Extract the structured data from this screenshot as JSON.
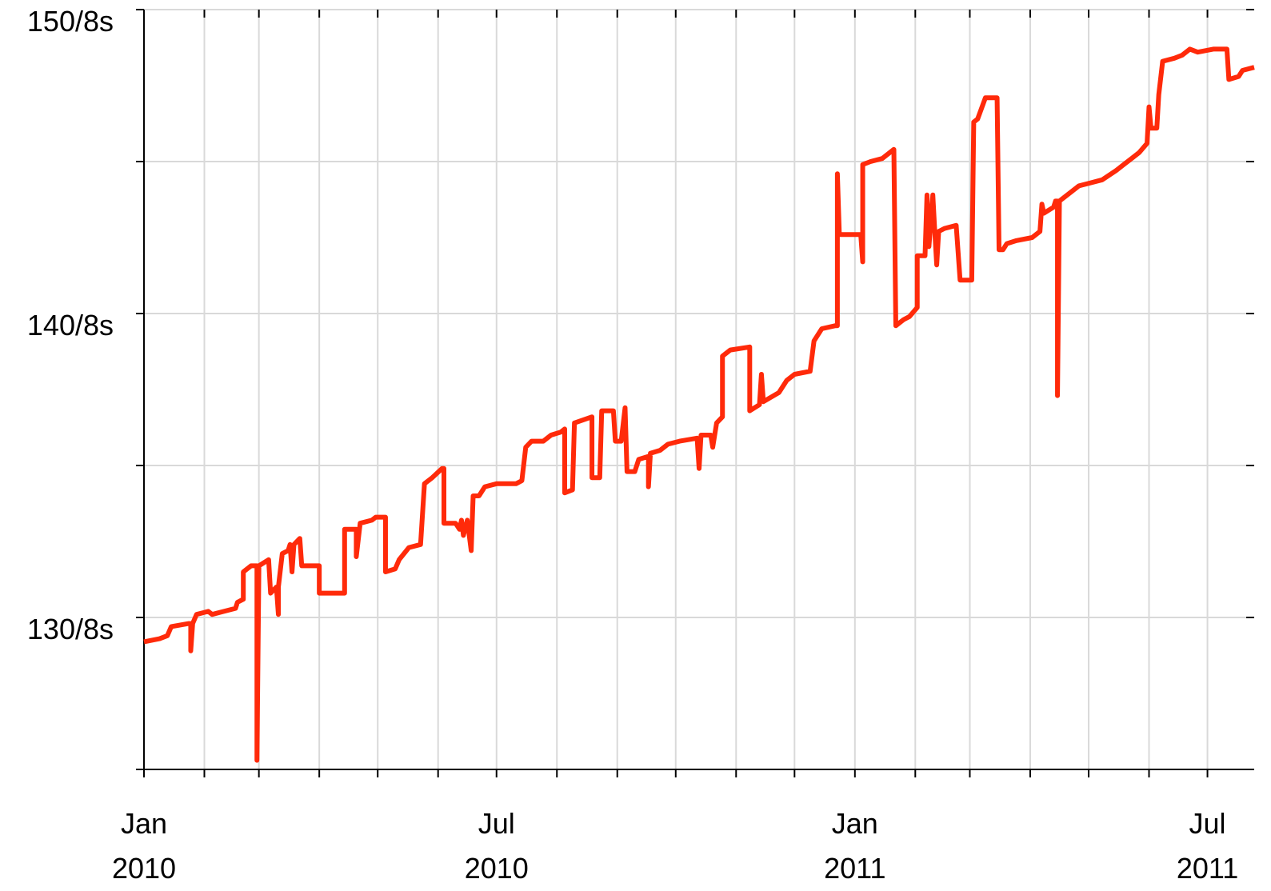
{
  "chart_data": {
    "type": "line",
    "xlim": [
      "2010-01-01",
      "2011-07-25"
    ],
    "xticks": [
      {
        "value": "2010-01",
        "label": "Jan\n2010"
      },
      {
        "value": "2010-02",
        "label": null
      },
      {
        "value": "2010-03",
        "label": null
      },
      {
        "value": "2010-04",
        "label": null
      },
      {
        "value": "2010-05",
        "label": null
      },
      {
        "value": "2010-06",
        "label": null
      },
      {
        "value": "2010-07",
        "label": "Jul\n2010"
      },
      {
        "value": "2010-08",
        "label": null
      },
      {
        "value": "2010-09",
        "label": null
      },
      {
        "value": "2010-10",
        "label": null
      },
      {
        "value": "2010-11",
        "label": null
      },
      {
        "value": "2010-12",
        "label": null
      },
      {
        "value": "2011-01",
        "label": "Jan\n2011"
      },
      {
        "value": "2011-02",
        "label": null
      },
      {
        "value": "2011-03",
        "label": null
      },
      {
        "value": "2011-04",
        "label": null
      },
      {
        "value": "2011-05",
        "label": null
      },
      {
        "value": "2011-06",
        "label": null
      },
      {
        "value": "2011-07",
        "label": "Jul\n2011"
      }
    ],
    "ylim": [
      125,
      150
    ],
    "yticks": [
      {
        "value": 125,
        "label": null
      },
      {
        "value": 130,
        "label": "130/8s"
      },
      {
        "value": 135,
        "label": null
      },
      {
        "value": 140,
        "label": "140/8s"
      },
      {
        "value": 145,
        "label": null
      },
      {
        "value": 150,
        "label": "150/8s"
      }
    ],
    "grid": true,
    "x": [
      "2010-01-01",
      "2010-01-09",
      "2010-01-13",
      "2010-01-15",
      "2010-01-24",
      "2010-01-25",
      "2010-01-25",
      "2010-01-26",
      "2010-01-28",
      "2010-02-03",
      "2010-02-05",
      "2010-02-11",
      "2010-02-17",
      "2010-02-18",
      "2010-02-21",
      "2010-02-21",
      "2010-02-25",
      "2010-02-28",
      "2010-02-28",
      "2010-03-01",
      "2010-03-06",
      "2010-03-07",
      "2010-03-10",
      "2010-03-11",
      "2010-03-11",
      "2010-03-13",
      "2010-03-16",
      "2010-03-17",
      "2010-03-18",
      "2010-03-19",
      "2010-03-22",
      "2010-03-23",
      "2010-03-26",
      "2010-04-01",
      "2010-04-01",
      "2010-04-09",
      "2010-04-14",
      "2010-04-14",
      "2010-04-20",
      "2010-04-20",
      "2010-04-22",
      "2010-04-28",
      "2010-04-30",
      "2010-05-05",
      "2010-05-05",
      "2010-05-10",
      "2010-05-12",
      "2010-05-17",
      "2010-05-23",
      "2010-05-25",
      "2010-05-29",
      "2010-06-03",
      "2010-06-04",
      "2010-06-04",
      "2010-06-10",
      "2010-06-12",
      "2010-06-13",
      "2010-06-14",
      "2010-06-16",
      "2010-06-18",
      "2010-06-19",
      "2010-06-22",
      "2010-06-25",
      "2010-07-01",
      "2010-07-11",
      "2010-07-14",
      "2010-07-16",
      "2010-07-19",
      "2010-07-25",
      "2010-07-29",
      "2010-08-03",
      "2010-08-05",
      "2010-08-05",
      "2010-08-09",
      "2010-08-10",
      "2010-08-19",
      "2010-08-19",
      "2010-08-23",
      "2010-08-24",
      "2010-08-30",
      "2010-08-31",
      "2010-09-03",
      "2010-09-05",
      "2010-09-06",
      "2010-09-10",
      "2010-09-12",
      "2010-09-17",
      "2010-09-17",
      "2010-09-18",
      "2010-09-23",
      "2010-09-27",
      "2010-10-03",
      "2010-10-12",
      "2010-10-13",
      "2010-10-14",
      "2010-10-19",
      "2010-10-20",
      "2010-10-22",
      "2010-10-25",
      "2010-10-25",
      "2010-10-29",
      "2010-11-08",
      "2010-11-08",
      "2010-11-13",
      "2010-11-14",
      "2010-11-15",
      "2010-11-23",
      "2010-11-27",
      "2010-12-01",
      "2010-12-09",
      "2010-12-11",
      "2010-12-15",
      "2010-12-22",
      "2010-12-23",
      "2010-12-23",
      "2010-12-24",
      "2011-01-04",
      "2011-01-05",
      "2011-01-05",
      "2011-01-09",
      "2011-01-15",
      "2011-01-21",
      "2011-01-22",
      "2011-01-26",
      "2011-01-29",
      "2011-02-02",
      "2011-02-02",
      "2011-02-06",
      "2011-02-07",
      "2011-02-08",
      "2011-02-10",
      "2011-02-11",
      "2011-02-12",
      "2011-02-13",
      "2011-02-16",
      "2011-02-22",
      "2011-02-24",
      "2011-03-02",
      "2011-03-03",
      "2011-03-05",
      "2011-03-09",
      "2011-03-15",
      "2011-03-16",
      "2011-03-18",
      "2011-03-20",
      "2011-03-25",
      "2011-04-02",
      "2011-04-06",
      "2011-04-07",
      "2011-04-08",
      "2011-04-13",
      "2011-04-14",
      "2011-04-15",
      "2011-04-15",
      "2011-04-16",
      "2011-04-22",
      "2011-04-26",
      "2011-05-02",
      "2011-05-08",
      "2011-05-15",
      "2011-05-19",
      "2011-05-23",
      "2011-05-27",
      "2011-05-31",
      "2011-06-01",
      "2011-06-02",
      "2011-06-05",
      "2011-06-06",
      "2011-06-08",
      "2011-06-14",
      "2011-06-18",
      "2011-06-22",
      "2011-06-26",
      "2011-07-04",
      "2011-07-11",
      "2011-07-12",
      "2011-07-17",
      "2011-07-19",
      "2011-07-25"
    ],
    "series": [
      {
        "color": "#ff2a0a",
        "values": [
          129.2,
          129.3,
          129.4,
          129.7,
          129.8,
          129.8,
          128.9,
          129.8,
          130.1,
          130.2,
          130.1,
          130.2,
          130.3,
          130.5,
          130.6,
          131.5,
          131.7,
          131.7,
          125.3,
          131.7,
          131.9,
          130.8,
          131.0,
          130.1,
          131.0,
          132.1,
          132.2,
          132.4,
          131.5,
          132.4,
          132.6,
          131.7,
          131.7,
          131.7,
          130.8,
          130.8,
          130.8,
          132.9,
          132.9,
          132.0,
          133.1,
          133.2,
          133.3,
          133.3,
          131.5,
          131.6,
          131.9,
          132.3,
          132.4,
          134.4,
          134.6,
          134.9,
          134.9,
          133.1,
          133.1,
          132.9,
          133.2,
          132.7,
          133.2,
          132.2,
          134.0,
          134.0,
          134.3,
          134.4,
          134.4,
          134.5,
          135.6,
          135.8,
          135.8,
          136.0,
          136.1,
          136.2,
          134.1,
          134.2,
          136.4,
          136.6,
          134.6,
          134.6,
          136.8,
          136.8,
          135.8,
          135.8,
          136.9,
          134.8,
          134.8,
          135.2,
          135.3,
          134.3,
          135.4,
          135.5,
          135.7,
          135.8,
          135.9,
          134.9,
          136.0,
          136.0,
          135.6,
          136.4,
          136.6,
          138.6,
          138.8,
          138.9,
          136.8,
          137.0,
          138.0,
          137.1,
          137.4,
          137.8,
          138.0,
          138.1,
          139.1,
          139.5,
          139.6,
          139.6,
          144.6,
          142.6,
          142.6,
          141.7,
          144.9,
          145.0,
          145.1,
          145.4,
          139.6,
          139.8,
          139.9,
          140.2,
          141.9,
          141.9,
          143.9,
          142.2,
          143.9,
          142.7,
          141.6,
          142.7,
          142.8,
          142.9,
          141.1,
          141.1,
          146.3,
          146.4,
          147.1,
          147.1,
          142.1,
          142.1,
          142.3,
          142.4,
          142.5,
          142.7,
          143.6,
          143.3,
          143.5,
          143.7,
          143.7,
          137.3,
          143.7,
          144.0,
          144.2,
          144.3,
          144.4,
          144.7,
          144.9,
          145.1,
          145.3,
          145.6,
          146.8,
          146.1,
          146.1,
          147.2,
          148.3,
          148.4,
          148.5,
          148.7,
          148.6,
          148.7,
          148.7,
          147.7,
          147.8,
          148.0,
          148.1
        ]
      }
    ]
  }
}
